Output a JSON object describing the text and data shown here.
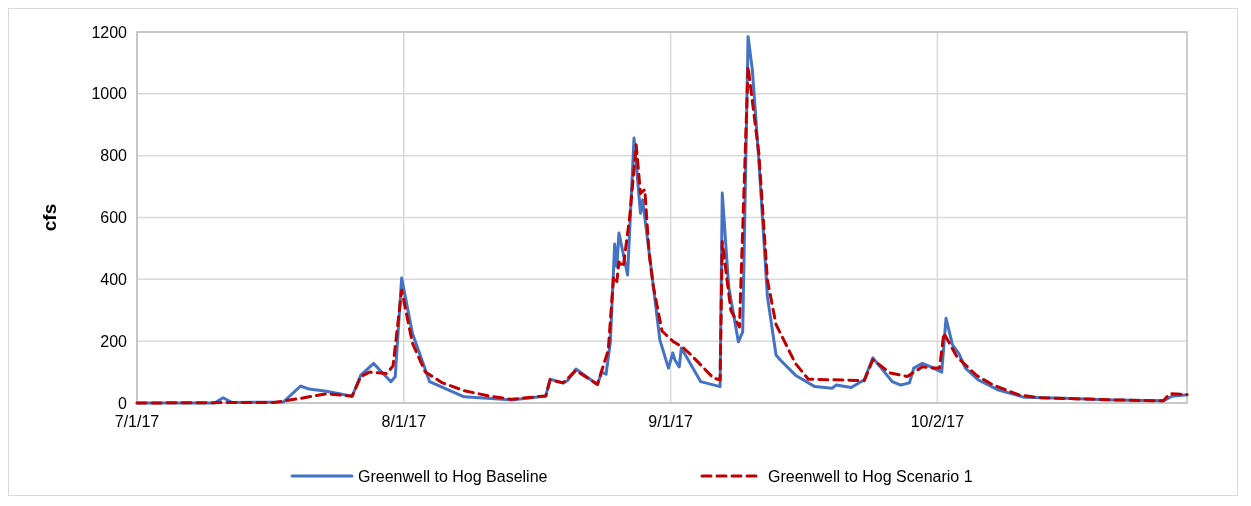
{
  "chart_data": {
    "type": "line",
    "ylabel": "cfs",
    "xlim": [
      "2017-07-01",
      "2017-10-31"
    ],
    "xticks": [
      {
        "value": "2017-07-01",
        "label": "7/1/17"
      },
      {
        "value": "2017-08-01",
        "label": "8/1/17"
      },
      {
        "value": "2017-09-01",
        "label": "9/1/17"
      },
      {
        "value": "2017-10-02",
        "label": "10/2/17"
      }
    ],
    "ylim": [
      0,
      1200
    ],
    "yticks": [
      0,
      200,
      400,
      600,
      800,
      1000,
      1200
    ],
    "grid": true,
    "legend": "bottom",
    "series": [
      {
        "name": "Greenwell  to Hog Baseline",
        "color": "#4472c4",
        "line_style": "solid",
        "x": [
          "2017-07-01",
          "2017-07-10",
          "2017-07-11",
          "2017-07-12",
          "2017-07-18",
          "2017-07-20",
          "2017-07-21",
          "2017-07-23",
          "2017-07-26",
          "2017-07-27",
          "2017-07-28T12:00",
          "2017-07-30T12:00",
          "2017-07-31",
          "2017-07-31T18:00",
          "2017-08-02",
          "2017-08-04",
          "2017-08-08",
          "2017-08-13T12:00",
          "2017-08-17T12:00",
          "2017-08-18",
          "2017-08-19T12:00",
          "2017-08-20",
          "2017-08-21",
          "2017-08-23T12:00",
          "2017-08-24",
          "2017-08-24T12:00",
          "2017-08-25",
          "2017-08-25T12:00",
          "2017-08-25T18:00",
          "2017-08-26",
          "2017-08-27",
          "2017-08-27T18:00",
          "2017-08-28T12:00",
          "2017-08-28T18:00",
          "2017-08-30",
          "2017-08-30T18:00",
          "2017-08-31T18:00",
          "2017-09-01T06:00",
          "2017-09-01T12:00",
          "2017-09-02",
          "2017-09-02T06:00",
          "2017-09-04T12:00",
          "2017-09-06T18:00",
          "2017-09-07",
          "2017-09-07T18:00",
          "2017-09-08T21:00",
          "2017-09-09T09:00",
          "2017-09-10",
          "2017-09-10T12:00",
          "2017-09-11T06:00",
          "2017-09-12T06:00",
          "2017-09-13T06:00",
          "2017-09-13T18:00",
          "2017-09-15T12:00",
          "2017-09-17T18:00",
          "2017-09-19T18:00",
          "2017-09-20T06:00",
          "2017-09-22",
          "2017-09-23T12:00",
          "2017-09-24T12:00",
          "2017-09-26T18:00",
          "2017-09-27T18:00",
          "2017-09-28T18:00",
          "2017-09-29T06:00",
          "2017-09-30T06:00",
          "2017-10-01T06:00",
          "2017-10-02T12:00",
          "2017-10-03",
          "2017-10-03T18:00",
          "2017-10-04T12:00",
          "2017-10-05T06:00",
          "2017-10-06T18:00",
          "2017-10-09",
          "2017-10-12",
          "2017-10-16T18:00",
          "2017-10-22T12:00",
          "2017-10-28T06:00",
          "2017-10-29T06:00",
          "2017-10-31"
        ],
        "values": [
          0,
          0,
          17,
          2,
          3,
          55,
          45,
          38,
          22,
          90,
          128,
          69,
          85,
          404,
          226,
          69,
          20,
          10,
          23,
          77,
          65,
          72,
          110,
          60,
          100,
          93,
          198,
          514,
          441,
          550,
          414,
          857,
          614,
          657,
          376,
          204,
          113,
          162,
          139,
          117,
          178,
          69,
          53,
          679,
          376,
          198,
          230,
          1185,
          1077,
          786,
          344,
          155,
          139,
          90,
          53,
          48,
          58,
          50,
          75,
          146,
          69,
          58,
          65,
          113,
          128,
          117,
          100,
          274,
          188,
          160,
          113,
          75,
          43,
          19,
          15,
          10,
          7,
          22,
          27
        ]
      },
      {
        "name": "Greenwell  to Hog Scenario 1",
        "color": "#c00000",
        "line_style": "dashed",
        "x": [
          "2017-07-01",
          "2017-07-17",
          "2017-07-20",
          "2017-07-23",
          "2017-07-26",
          "2017-07-27",
          "2017-07-28",
          "2017-07-30",
          "2017-07-30T18:00",
          "2017-07-31T18:00",
          "2017-08-02",
          "2017-08-03T12:00",
          "2017-08-05T12:00",
          "2017-08-08",
          "2017-08-11",
          "2017-08-13T12:00",
          "2017-08-17T12:00",
          "2017-08-18",
          "2017-08-19T12:00",
          "2017-08-21",
          "2017-08-23T12:00",
          "2017-08-24",
          "2017-08-24T18:00",
          "2017-08-25T09:00",
          "2017-08-25T18:00",
          "2017-08-26",
          "2017-08-26T12:00",
          "2017-08-27T06:00",
          "2017-08-28",
          "2017-08-28T12:00",
          "2017-08-29",
          "2017-08-29T12:00",
          "2017-08-30",
          "2017-08-31",
          "2017-09-01T06:00",
          "2017-09-02T12:00",
          "2017-09-03T12:00",
          "2017-09-06",
          "2017-09-06T18:00",
          "2017-09-07",
          "2017-09-08",
          "2017-09-09",
          "2017-09-10",
          "2017-09-11T06:00",
          "2017-09-12T06:00",
          "2017-09-13T06:00",
          "2017-09-15T12:00",
          "2017-09-17",
          "2017-09-20",
          "2017-09-23T12:00",
          "2017-09-24T12:00",
          "2017-09-26T12:00",
          "2017-09-28T12:00",
          "2017-09-30T06:00",
          "2017-10-01T06:00",
          "2017-10-02T06:00",
          "2017-10-02T18:00",
          "2017-10-04T06:00",
          "2017-10-06T12:00",
          "2017-10-08T12:00",
          "2017-10-11T12:00",
          "2017-10-14",
          "2017-10-22T12:00",
          "2017-10-28T06:00",
          "2017-10-29",
          "2017-10-31"
        ],
        "values": [
          0,
          2,
          15,
          30,
          22,
          85,
          100,
          95,
          120,
          365,
          194,
          100,
          65,
          40,
          22,
          12,
          23,
          75,
          65,
          105,
          60,
          105,
          170,
          409,
          393,
          456,
          440,
          603,
          835,
          678,
          690,
          485,
          376,
          233,
          200,
          178,
          152,
          80,
          75,
          522,
          300,
          246,
          1088,
          808,
          398,
          254,
          128,
          77,
          75,
          72,
          140,
          97,
          86,
          117,
          113,
          113,
          226,
          150,
          90,
          58,
          26,
          17,
          10,
          7,
          30,
          27
        ]
      }
    ]
  }
}
